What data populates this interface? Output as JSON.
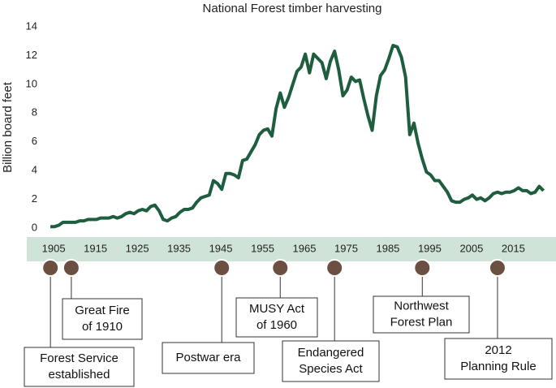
{
  "chart_data": {
    "type": "line",
    "title": "National Forest timber harvesting",
    "y_label": "Billion board feet",
    "x": [
      1905,
      1906,
      1907,
      1908,
      1909,
      1910,
      1911,
      1912,
      1913,
      1914,
      1915,
      1916,
      1917,
      1918,
      1919,
      1920,
      1921,
      1922,
      1923,
      1924,
      1925,
      1926,
      1927,
      1928,
      1929,
      1930,
      1931,
      1932,
      1933,
      1934,
      1935,
      1936,
      1937,
      1938,
      1939,
      1940,
      1941,
      1942,
      1943,
      1944,
      1945,
      1946,
      1947,
      1948,
      1949,
      1950,
      1951,
      1952,
      1953,
      1954,
      1955,
      1956,
      1957,
      1958,
      1959,
      1960,
      1961,
      1962,
      1963,
      1964,
      1965,
      1966,
      1967,
      1968,
      1969,
      1970,
      1971,
      1972,
      1973,
      1974,
      1975,
      1976,
      1977,
      1978,
      1979,
      1980,
      1981,
      1982,
      1983,
      1984,
      1985,
      1986,
      1987,
      1988,
      1989,
      1990,
      1991,
      1992,
      1993,
      1994,
      1995,
      1996,
      1997,
      1998,
      1999,
      2000,
      2001,
      2002,
      2003,
      2004,
      2005,
      2006,
      2007,
      2008,
      2009,
      2010,
      2011,
      2012,
      2013,
      2014,
      2015,
      2016,
      2017,
      2018,
      2019,
      2020,
      2021,
      2022,
      2023
    ],
    "series": [
      {
        "name": "Timber harvest",
        "color": "#1e5e3e",
        "values": [
          0.1,
          0.1,
          0.2,
          0.4,
          0.4,
          0.4,
          0.4,
          0.5,
          0.5,
          0.6,
          0.6,
          0.6,
          0.7,
          0.7,
          0.7,
          0.8,
          0.7,
          0.8,
          1.0,
          1.1,
          1.0,
          1.2,
          1.3,
          1.2,
          1.5,
          1.6,
          1.2,
          0.6,
          0.5,
          0.7,
          0.8,
          1.1,
          1.3,
          1.3,
          1.4,
          1.8,
          2.1,
          2.2,
          2.3,
          3.3,
          3.1,
          2.7,
          3.8,
          3.8,
          3.7,
          3.5,
          4.7,
          4.8,
          5.3,
          5.8,
          6.5,
          6.8,
          6.9,
          6.4,
          8.3,
          9.4,
          8.4,
          9.1,
          10.0,
          10.9,
          11.2,
          12.1,
          10.8,
          12.1,
          11.8,
          11.5,
          10.4,
          11.6,
          12.3,
          11.0,
          9.2,
          9.6,
          10.5,
          10.2,
          10.3,
          9.0,
          7.8,
          6.8,
          9.2,
          10.6,
          11.0,
          11.8,
          12.7,
          12.6,
          11.9,
          10.5,
          6.5,
          7.3,
          5.9,
          4.8,
          3.9,
          3.7,
          3.3,
          3.3,
          2.9,
          2.5,
          1.9,
          1.8,
          1.8,
          2.0,
          2.1,
          2.3,
          2.0,
          2.1,
          1.9,
          2.1,
          2.4,
          2.5,
          2.4,
          2.5,
          2.5,
          2.6,
          2.8,
          2.6,
          2.6,
          2.4,
          2.5,
          2.9,
          2.6
        ]
      }
    ],
    "xlim": [
      1904,
      2026
    ],
    "xticks": [
      1905,
      1915,
      1925,
      1935,
      1945,
      1955,
      1965,
      1975,
      1985,
      1995,
      2005,
      2015
    ],
    "ylim": [
      0,
      14
    ],
    "yticks": [
      0,
      2,
      4,
      6,
      8,
      10,
      12,
      14
    ],
    "grid": false,
    "events": [
      {
        "year": 1905,
        "text": [
          "Forest Service",
          "established"
        ]
      },
      {
        "year": 1910,
        "text": [
          "Great Fire",
          "of 1910"
        ]
      },
      {
        "year": 1946,
        "text": [
          "Postwar era"
        ]
      },
      {
        "year": 1960,
        "text": [
          "MUSY Act",
          "of 1960"
        ]
      },
      {
        "year": 1973,
        "text": [
          "Endangered",
          "Species Act"
        ]
      },
      {
        "year": 1994,
        "text": [
          "Northwest",
          "Forest Plan"
        ]
      },
      {
        "year": 2012,
        "text": [
          "2012",
          "Planning Rule"
        ]
      }
    ]
  }
}
